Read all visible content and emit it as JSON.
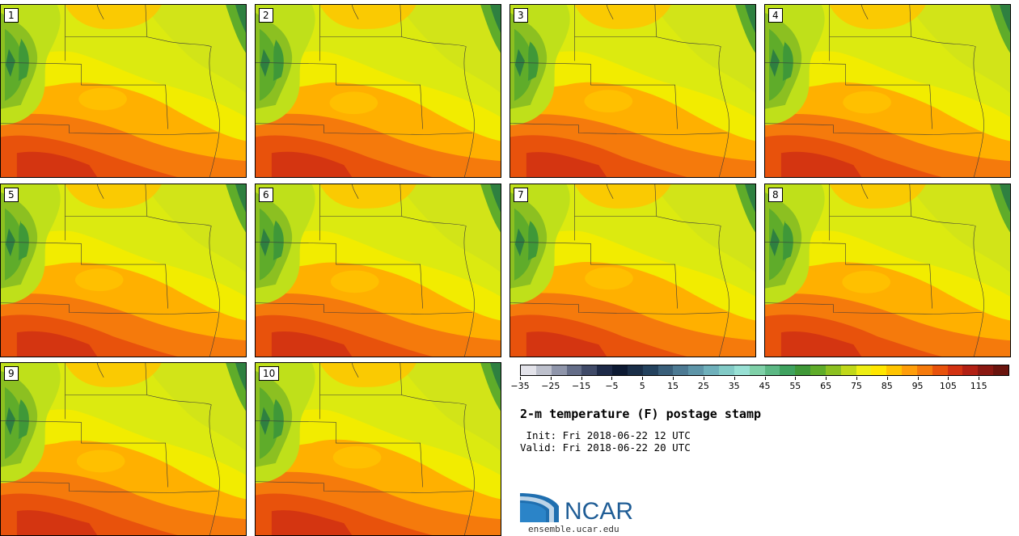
{
  "panels": [
    {
      "label": "1"
    },
    {
      "label": "2"
    },
    {
      "label": "3"
    },
    {
      "label": "4"
    },
    {
      "label": "5"
    },
    {
      "label": "6"
    },
    {
      "label": "7"
    },
    {
      "label": "8"
    },
    {
      "label": "9"
    },
    {
      "label": "10"
    }
  ],
  "colorbar": {
    "colors": [
      "#e3e3ea",
      "#bdc0cc",
      "#8f95aa",
      "#646d88",
      "#404a68",
      "#1e2a48",
      "#0d1a33",
      "#1a2e48",
      "#24425e",
      "#3a5f7a",
      "#4d7a93",
      "#5e95a8",
      "#6fb0bb",
      "#82cac6",
      "#98e0d4",
      "#7fd0a8",
      "#5cb884",
      "#3fa25f",
      "#3f9838",
      "#5fac2a",
      "#8cc021",
      "#c0d81a",
      "#eeee14",
      "#ffe600",
      "#ffc400",
      "#ff9e0a",
      "#f57a0c",
      "#e8520c",
      "#d23212",
      "#b22014",
      "#8a1812",
      "#6a140e"
    ],
    "tick_labels": [
      "−35",
      "−25",
      "−15",
      "−5",
      "5",
      "15",
      "25",
      "35",
      "45",
      "55",
      "65",
      "75",
      "85",
      "95",
      "105",
      "115"
    ]
  },
  "title": "2-m temperature (F) postage stamp",
  "init": " Init: Fri 2018-06-22 12 UTC",
  "valid": "Valid: Fri 2018-06-22 20 UTC",
  "logo": {
    "name": "NCAR",
    "color": "#1f5d96"
  },
  "site": "ensemble.ucar.edu"
}
